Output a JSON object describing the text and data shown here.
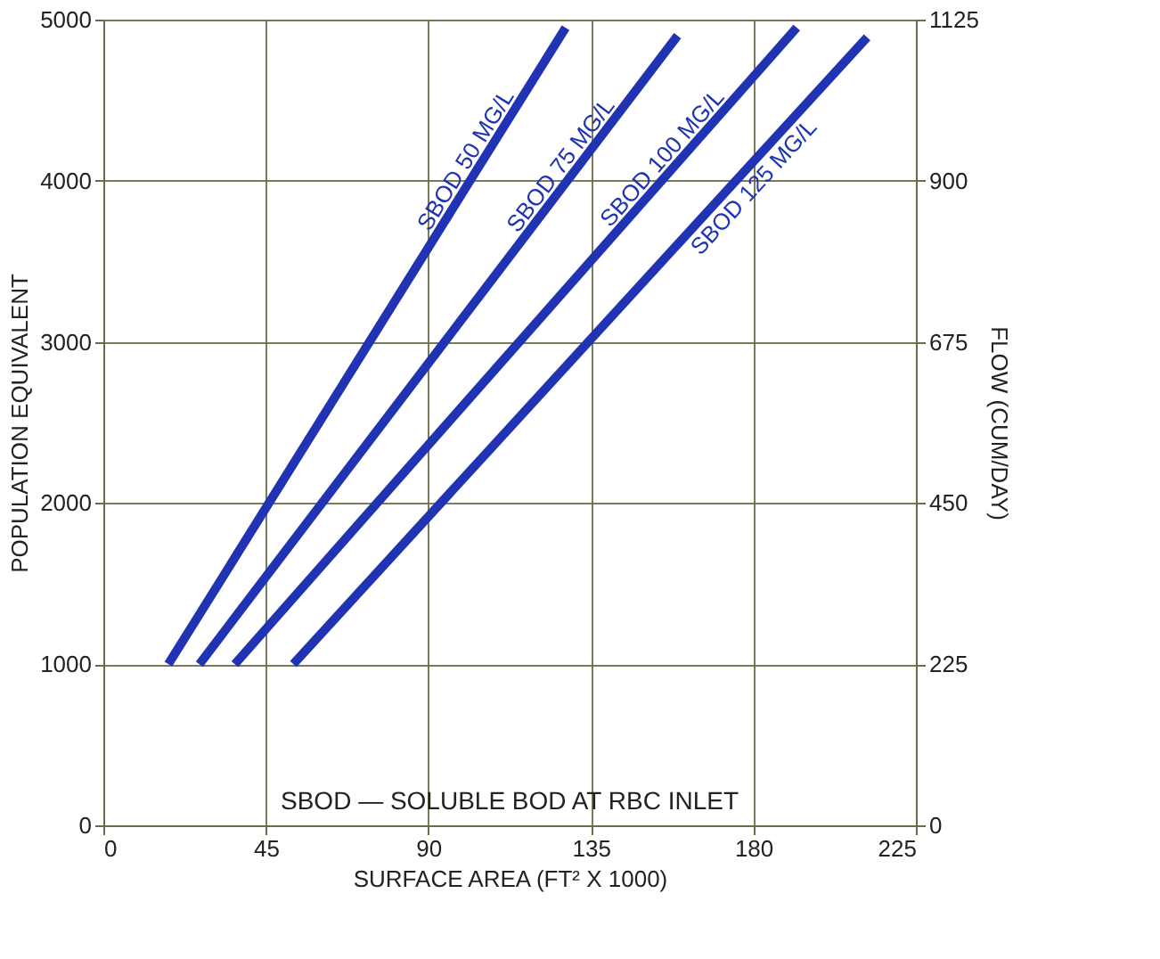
{
  "chart_data": {
    "type": "line",
    "xlabel": "SURFACE AREA (FT² X 1000)",
    "ylabel": "POPULATION EQUIVALENT",
    "y2label": "FLOW (CUM/DAY)",
    "xlim": [
      0,
      225
    ],
    "xticks": [
      0,
      45,
      90,
      135,
      180,
      225
    ],
    "ylim": [
      0,
      5000
    ],
    "yticks": [
      0,
      1000,
      2000,
      3000,
      4000,
      5000
    ],
    "y2lim": [
      0,
      1125
    ],
    "y2ticks": [
      0,
      225,
      450,
      675,
      900,
      1125
    ],
    "grid": true,
    "marker": "none",
    "line_style": "solid",
    "series": [
      {
        "name": "SBOD 50 MG/L",
        "color": "#1f33b3",
        "x": [
          18,
          128
        ],
        "values": [
          1000,
          4950
        ]
      },
      {
        "name": "SBOD 75 MG/L",
        "color": "#1f33b3",
        "x": [
          26.6,
          159
        ],
        "values": [
          1000,
          4900
        ]
      },
      {
        "name": "SBOD 100 MG/L",
        "color": "#1f33b3",
        "x": [
          36.4,
          192
        ],
        "values": [
          1000,
          4950
        ]
      },
      {
        "name": "SBOD 125 MG/L",
        "color": "#1f33b3",
        "x": [
          52.6,
          211.5
        ],
        "values": [
          1000,
          4890
        ]
      }
    ],
    "annotations": [
      "SBOD — SOLUBLE BOD AT RBC INLET"
    ]
  }
}
